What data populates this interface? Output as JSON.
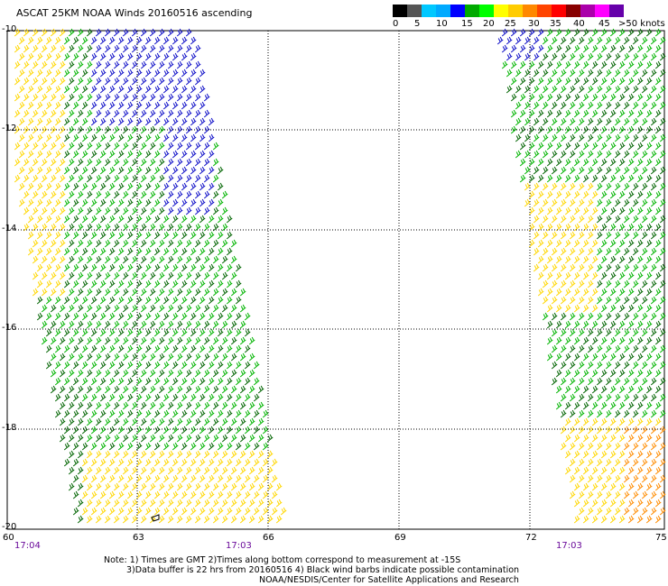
{
  "title": "ASCAT 25KM NOAA Winds 20160516 ascending",
  "scale": {
    "colors": [
      "#000000",
      "#555555",
      "#00c8ff",
      "#00aaff",
      "#0000ff",
      "#00aa00",
      "#00ff00",
      "#ffff00",
      "#ffcc00",
      "#ff8800",
      "#ff4400",
      "#ff0000",
      "#880000",
      "#aa00aa",
      "#ff00ff",
      "#6600aa"
    ],
    "labels": [
      "0",
      "5",
      "10",
      "15",
      "20",
      "25",
      "30",
      "35",
      "40",
      "45",
      ">50 knots"
    ]
  },
  "axes": {
    "lat_labels": [
      "-10",
      "-12",
      "-14",
      "-16",
      "-18",
      "-20"
    ],
    "lon_labels": [
      "60",
      "63",
      "66",
      "69",
      "72",
      "75"
    ]
  },
  "times": [
    "17:04",
    "17:03",
    "17:03"
  ],
  "notes": {
    "line1": "Note: 1) Times are GMT 2)Times along bottom correspond to measurement at -15S",
    "line2": "3)Data buffer is 22 hrs from 20160516 4) Black wind barbs indicate possible contamination",
    "line3": "NOAA/NESDIS/Center for Satellite Applications and Research"
  },
  "colors": {
    "blue": "#1010c8",
    "green": "#00b400",
    "darkgreen": "#006400",
    "yellow": "#ffd700",
    "orange": "#ff8c00",
    "grid": "#000000"
  }
}
